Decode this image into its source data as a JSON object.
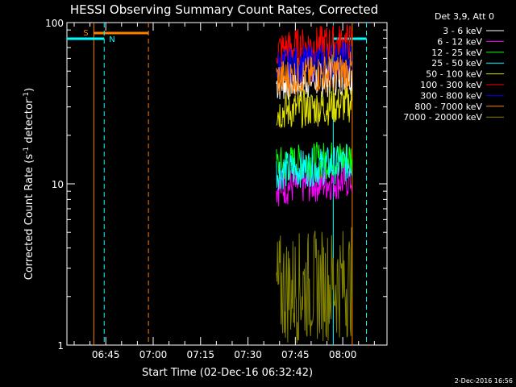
{
  "chart_data": {
    "type": "line",
    "title": "HESSI Observing Summary Count Rates, Corrected",
    "xlabel": "Start Time (02-Dec-16 06:32:42)",
    "ylabel_main": "Corrected Count Rate (s",
    "ylabel_sup": "-1",
    "ylabel_mid": " detector",
    "ylabel_end": ")",
    "yscale": "log",
    "ylim": [
      1,
      100
    ],
    "xlim": [
      "06:32:42",
      "08:14:00"
    ],
    "x_ticks": [
      "06:45",
      "07:00",
      "07:15",
      "07:30",
      "07:45",
      "08:00"
    ],
    "y_ticks": [
      "1",
      "10",
      "100"
    ],
    "legend_title": "Det 3,9, Att 0",
    "legend_position": "right",
    "footer_date": "2-Dec-2016 16:56",
    "markers": [
      {
        "label": "S",
        "color": "#ff7f00"
      },
      {
        "label": "N",
        "color": "#00ffff"
      }
    ],
    "series": [
      {
        "name": "3 - 6 keV",
        "color": "#ffffff",
        "level": 42
      },
      {
        "name": "6 - 12 keV",
        "color": "#ff00ff",
        "level": 9.5
      },
      {
        "name": "12 - 25 keV",
        "color": "#00ff00",
        "level": 13
      },
      {
        "name": "25 - 50 keV",
        "color": "#00ffff",
        "level": 12
      },
      {
        "name": "50 - 100 keV",
        "color": "#dddd00",
        "level": 28
      },
      {
        "name": "100 - 300 keV",
        "color": "#ff0000",
        "level": 68
      },
      {
        "name": "300 - 800 keV",
        "color": "#0000ff",
        "level": 53
      },
      {
        "name": "800 - 7000 keV",
        "color": "#ff7f00",
        "level": 45
      },
      {
        "name": "7000 - 20000 keV",
        "color": "#808000",
        "level": 2.2
      }
    ]
  }
}
